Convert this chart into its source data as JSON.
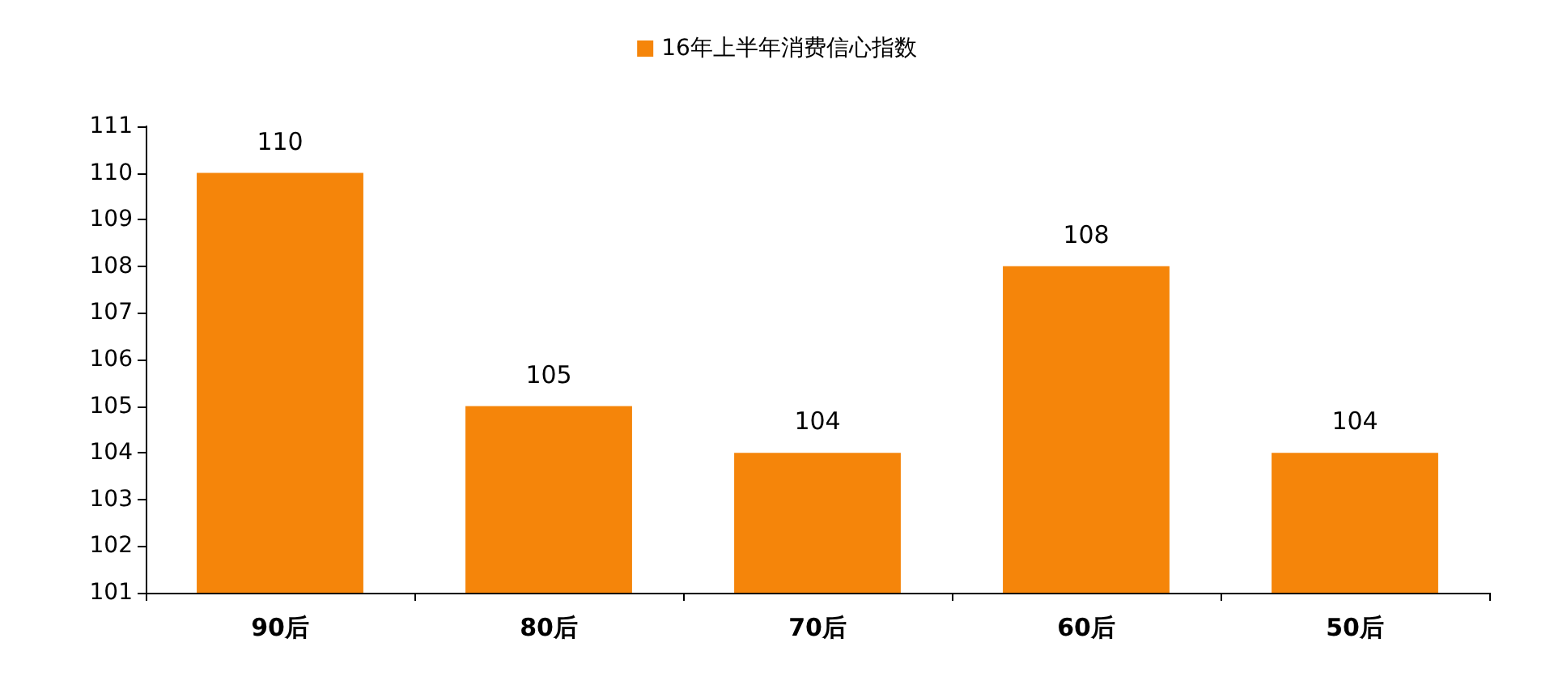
{
  "chart_data": {
    "type": "bar",
    "categories": [
      "90后",
      "80后",
      "70后",
      "60后",
      "50后"
    ],
    "series": [
      {
        "name": "16年上半年消费信心指数",
        "color": "#f5850a",
        "values": [
          110,
          105,
          104,
          108,
          104
        ]
      }
    ],
    "ylim": [
      101,
      111
    ],
    "yticks": [
      101,
      102,
      103,
      104,
      105,
      106,
      107,
      108,
      109,
      110,
      111
    ],
    "data_labels": true,
    "legend": "top",
    "grid": false
  }
}
